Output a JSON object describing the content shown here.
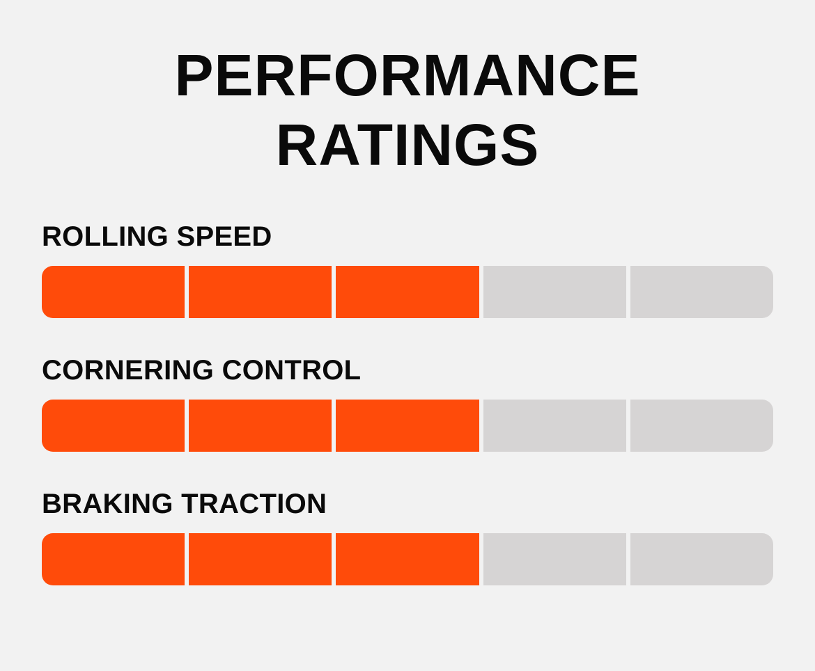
{
  "title": {
    "line1": "PERFORMANCE",
    "line2": "RATINGS"
  },
  "max_rating": 5,
  "colors": {
    "filled": "#ff4b0a",
    "empty": "#d6d4d4",
    "background": "#f2f2f2"
  },
  "ratings": [
    {
      "label": "ROLLING SPEED",
      "value": 3
    },
    {
      "label": "CORNERING CONTROL",
      "value": 3
    },
    {
      "label": "BRAKING TRACTION",
      "value": 3
    }
  ]
}
